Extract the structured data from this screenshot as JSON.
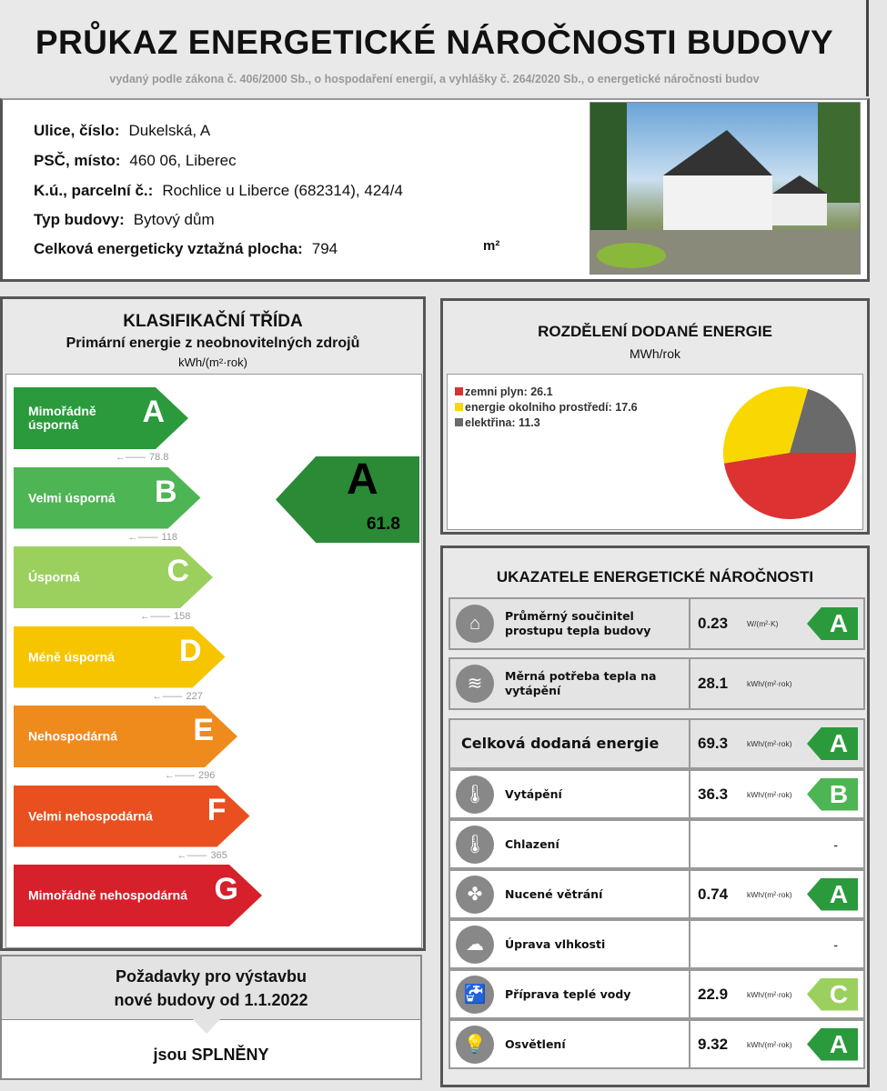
{
  "header": {
    "title": "PRŮKAZ ENERGETICKÉ NÁROČNOSTI BUDOVY",
    "subtitle": "vydaný podle zákona č. 406/2000 Sb., o hospodaření energií, a vyhlášky č. 264/2020 Sb., o energetické náročnosti budov"
  },
  "info": [
    {
      "label": "Ulice, číslo:",
      "value": "Dukelská, A"
    },
    {
      "label": "PSČ, místo:",
      "value": "460 06, Liberec"
    },
    {
      "label": "K.ú., parcelní č.:",
      "value": "Rochlice u Liberce (682314), 424/4"
    },
    {
      "label": "Typ budovy:",
      "value": "Bytový dům"
    },
    {
      "label": "Celková energeticky vztažná plocha:",
      "value": "794",
      "unit": "m²"
    }
  ],
  "classification": {
    "title": "KLASIFIKAČNÍ TŘÍDA",
    "subtitle": "Primární energie z neobnovitelných zdrojů",
    "unit": "kWh/(m²·rok)",
    "rating": {
      "class": "A",
      "value": "61.8",
      "color": "#2a8a36"
    },
    "classes": [
      {
        "letter": "A",
        "label": "Mimořádně úsporná",
        "threshold": "78.8",
        "color": "#2a9a3c"
      },
      {
        "letter": "B",
        "label": "Velmi úsporná",
        "threshold": "118",
        "color": "#4db553"
      },
      {
        "letter": "C",
        "label": "Úsporná",
        "threshold": "158",
        "color": "#9bd05e"
      },
      {
        "letter": "D",
        "label": "Méně úsporná",
        "threshold": "227",
        "color": "#f6c500"
      },
      {
        "letter": "E",
        "label": "Nehospodárná",
        "threshold": "296",
        "color": "#ef8a1c"
      },
      {
        "letter": "F",
        "label": "Velmi nehospodárná",
        "threshold": "365",
        "color": "#e94f1f"
      },
      {
        "letter": "G",
        "label": "Mimořádně nehospodárná",
        "threshold": "",
        "color": "#d6202b"
      }
    ]
  },
  "requirements": {
    "line1": "Požadavky pro výstavbu",
    "line2": "nové budovy od 1.1.2022",
    "result": "jsou SPLNĚNY"
  },
  "distribution": {
    "title": "ROZDĚLENÍ DODANÉ ENERGIE",
    "unit": "MWh/rok"
  },
  "chart_data": {
    "type": "pie",
    "unit": "MWh/rok",
    "slices": [
      {
        "name": "zemní plyn",
        "value": 26.1,
        "label": "zemni plyn: 26.1",
        "color": "#dd3232"
      },
      {
        "name": "energie okolního prostředí",
        "value": 17.6,
        "label": "energie okolniho prostředí: 17.6",
        "color": "#f8d800"
      },
      {
        "name": "elektřina",
        "value": 11.3,
        "label": "elektřina: 11.3",
        "color": "#6a6a6a"
      }
    ]
  },
  "indicators": {
    "title": "UKAZATELE ENERGETICKÉ NÁROČNOSTI",
    "rows": [
      {
        "icon": "house-icon",
        "glyph": "⌂",
        "label": "Průměrný součinitel prostupu tepla budovy",
        "value": "0.23",
        "unit": "W/(m²·K)",
        "class": "A",
        "color": "#2a9a3c"
      },
      {
        "icon": "heat-thermometer-icon",
        "glyph": "≋",
        "label": "Měrná potřeba tepla na vytápění",
        "value": "28.1",
        "unit": "kWh/(m²·rok)",
        "class": "",
        "color": ""
      },
      {
        "icon": "",
        "glyph": "",
        "label": "Celková dodaná energie",
        "value": "69.3",
        "unit": "kWh/(m²·rok)",
        "class": "A",
        "color": "#2a9a3c"
      },
      {
        "icon": "thermometer-plus-icon",
        "glyph": "🌡",
        "label": "Vytápění",
        "value": "36.3",
        "unit": "kWh/(m²·rok)",
        "class": "B",
        "color": "#4db553"
      },
      {
        "icon": "thermometer-minus-icon",
        "glyph": "🌡",
        "label": "Chlazení",
        "value": "",
        "unit": "",
        "class": "",
        "color": "",
        "dash": "-"
      },
      {
        "icon": "fan-icon",
        "glyph": "✤",
        "label": "Nucené větrání",
        "value": "0.74",
        "unit": "kWh/(m²·rok)",
        "class": "A",
        "color": "#2a9a3c"
      },
      {
        "icon": "humidity-icon",
        "glyph": "☁",
        "label": "Úprava vlhkosti",
        "value": "",
        "unit": "",
        "class": "",
        "color": "",
        "dash": "-"
      },
      {
        "icon": "faucet-icon",
        "glyph": "🚰",
        "label": "Příprava teplé vody",
        "value": "22.9",
        "unit": "kWh/(m²·rok)",
        "class": "C",
        "color": "#9bd05e"
      },
      {
        "icon": "light-bulb-icon",
        "glyph": "💡",
        "label": "Osvětlení",
        "value": "9.32",
        "unit": "kWh/(m²·rok)",
        "class": "A",
        "color": "#2a9a3c"
      }
    ]
  }
}
